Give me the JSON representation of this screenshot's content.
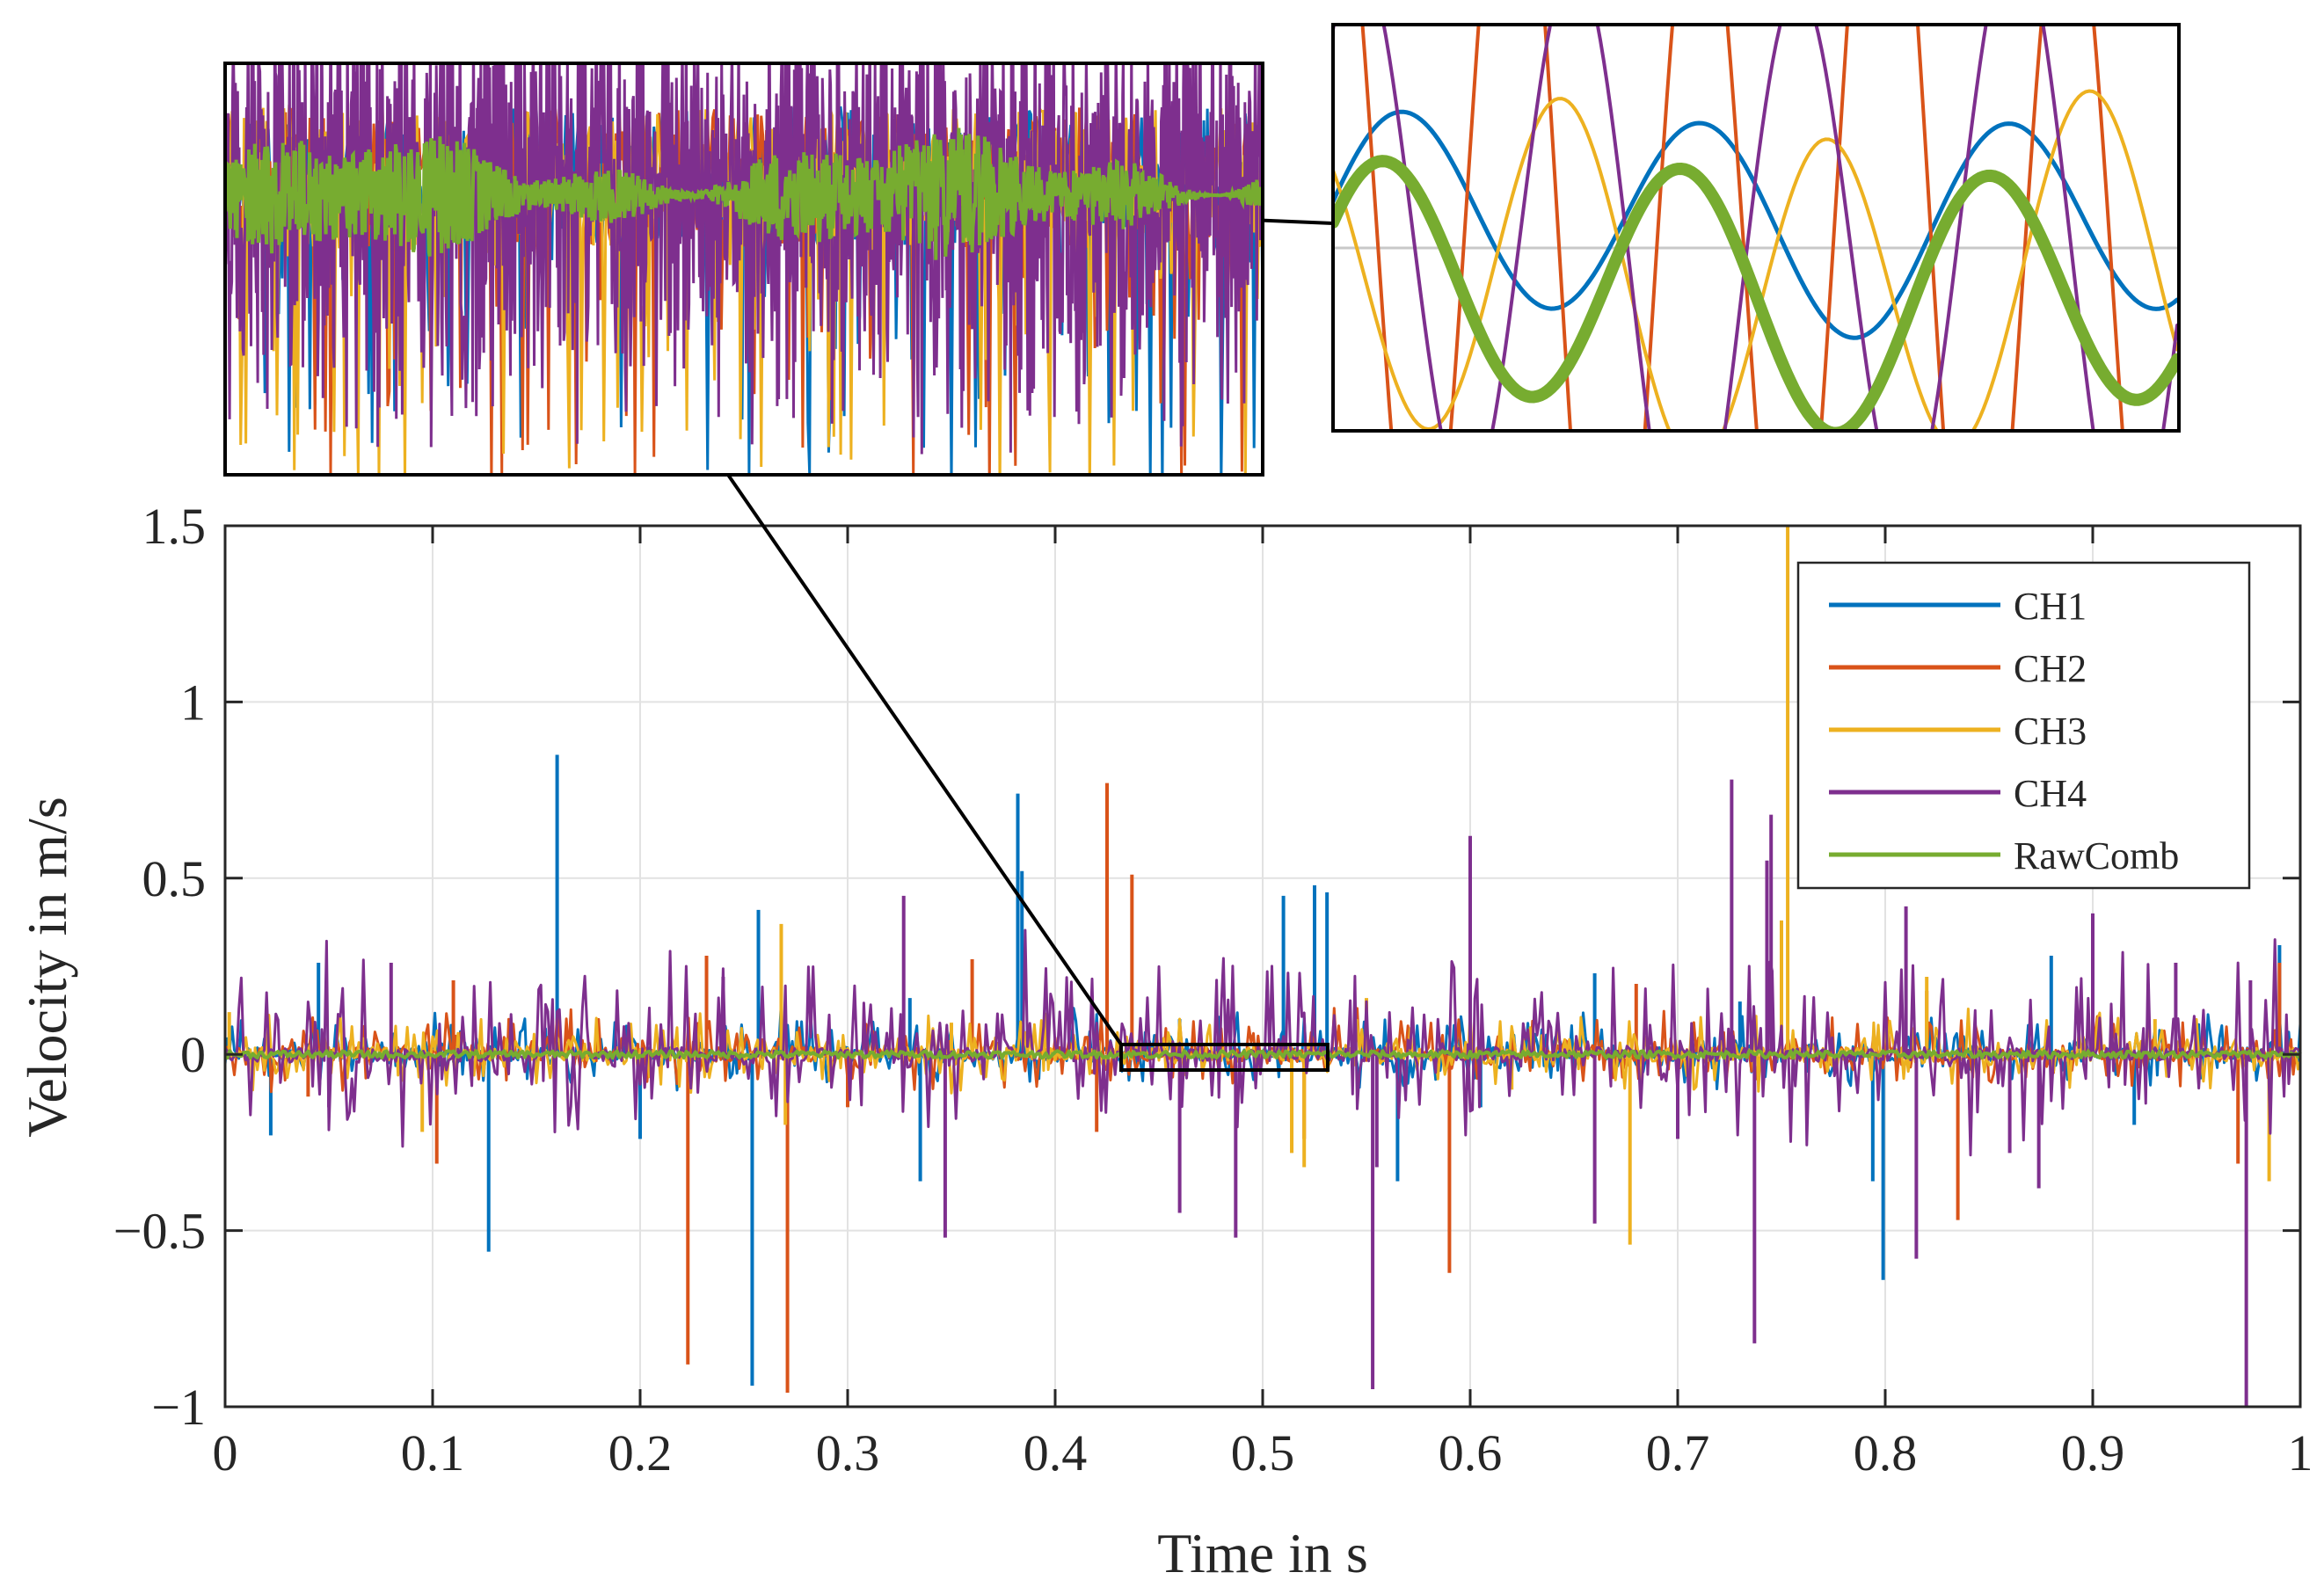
{
  "chart_data": [
    {
      "type": "line",
      "role": "main",
      "title": "",
      "xlabel": "Time in s",
      "ylabel": "Velocity in m/s",
      "xlim": [
        0,
        1
      ],
      "ylim": [
        -1,
        1.5
      ],
      "xticks": [
        0,
        0.1,
        0.2,
        0.3,
        0.4,
        0.5,
        0.6,
        0.7,
        0.8,
        0.9,
        1
      ],
      "xtick_labels": [
        "0",
        "0.1",
        "0.2",
        "0.3",
        "0.4",
        "0.5",
        "0.6",
        "0.7",
        "0.8",
        "0.9",
        "1"
      ],
      "yticks": [
        -1,
        -0.5,
        0,
        0.5,
        1,
        1.5
      ],
      "ytick_labels": [
        "−1",
        "−0.5",
        "0",
        "0.5",
        "1",
        "1.5"
      ],
      "grid": true,
      "legend_position": "top-right",
      "series": [
        {
          "name": "CH1",
          "color": "#0072BD",
          "linewidth": 4,
          "spikes": [
            [
              0.16,
              0.85
            ],
            [
              0.127,
              -0.56
            ],
            [
              0.254,
              -0.94
            ],
            [
              0.257,
              0.41
            ],
            [
              0.382,
              0.74
            ],
            [
              0.384,
              0.52
            ],
            [
              0.525,
              0.48
            ],
            [
              0.531,
              0.46
            ],
            [
              0.51,
              0.45
            ],
            [
              0.799,
              -0.64
            ],
            [
              0.794,
              -0.36
            ],
            [
              0.335,
              -0.36
            ],
            [
              0.045,
              0.26
            ],
            [
              0.33,
              0.16
            ],
            [
              0.66,
              0.23
            ],
            [
              0.99,
              0.31
            ],
            [
              0.022,
              -0.23
            ],
            [
              0.2,
              -0.24
            ],
            [
              0.565,
              -0.36
            ],
            [
              0.88,
              0.28
            ],
            [
              0.92,
              -0.2
            ],
            [
              0.73,
              0.15
            ],
            [
              0.46,
              0.1
            ],
            [
              0.605,
              -0.15
            ]
          ]
        },
        {
          "name": "CH2",
          "color": "#D95319",
          "linewidth": 4,
          "spikes": [
            [
              0.223,
              -0.88
            ],
            [
              0.271,
              -0.96
            ],
            [
              0.425,
              0.77
            ],
            [
              0.437,
              0.51
            ],
            [
              0.59,
              -0.62
            ],
            [
              0.6,
              0.27
            ],
            [
              0.835,
              -0.47
            ],
            [
              0.99,
              0.26
            ],
            [
              0.102,
              -0.31
            ],
            [
              0.232,
              0.28
            ],
            [
              0.36,
              0.27
            ],
            [
              0.52,
              -0.24
            ],
            [
              0.97,
              -0.31
            ],
            [
              0.42,
              -0.22
            ],
            [
              0.11,
              0.21
            ],
            [
              0.68,
              0.2
            ],
            [
              0.82,
              0.18
            ],
            [
              0.3,
              -0.15
            ],
            [
              0.75,
              0.12
            ],
            [
              0.04,
              -0.12
            ]
          ]
        },
        {
          "name": "CH3",
          "color": "#EDB120",
          "linewidth": 4,
          "spikes": [
            [
              0.753,
              1.5
            ],
            [
              0.268,
              0.37
            ],
            [
              0.677,
              -0.54
            ],
            [
              0.095,
              -0.22
            ],
            [
              0.985,
              -0.36
            ],
            [
              0.52,
              -0.32
            ],
            [
              0.514,
              -0.28
            ],
            [
              0.75,
              0.38
            ],
            [
              0.27,
              -0.2
            ],
            [
              0.82,
              0.22
            ],
            [
              0.55,
              0.16
            ],
            [
              0.002,
              0.12
            ],
            [
              0.35,
              0.09
            ],
            [
              0.62,
              -0.1
            ],
            [
              0.93,
              0.1
            ]
          ]
        },
        {
          "name": "CH4",
          "color": "#7E2F8E",
          "linewidth": 4,
          "spikes": [
            [
              0.553,
              -0.95
            ],
            [
              0.974,
              -1.0
            ],
            [
              0.737,
              -0.82
            ],
            [
              0.555,
              -0.32
            ],
            [
              0.327,
              0.45
            ],
            [
              0.6,
              0.62
            ],
            [
              0.726,
              0.78
            ],
            [
              0.745,
              0.68
            ],
            [
              0.743,
              0.55
            ],
            [
              0.347,
              -0.52
            ],
            [
              0.815,
              -0.58
            ],
            [
              0.874,
              -0.38
            ],
            [
              0.487,
              -0.52
            ],
            [
              0.46,
              -0.45
            ],
            [
              0.94,
              0.26
            ],
            [
              0.66,
              -0.48
            ],
            [
              0.9,
              0.4
            ],
            [
              0.81,
              0.42
            ],
            [
              0.976,
              0.21
            ],
            [
              0.7,
              -0.24
            ],
            [
              0.86,
              -0.28
            ],
            [
              0.24,
              0.22
            ],
            [
              0.05,
              -0.15
            ],
            [
              0.08,
              0.26
            ]
          ],
          "noise_amplitude": 0.25
        },
        {
          "name": "RawComb",
          "color": "#77AC30",
          "linewidth": 5,
          "noise_amplitude": 0.01
        }
      ]
    },
    {
      "type": "line",
      "role": "inset-zoom",
      "title": "",
      "source_xlim": [
        0.432,
        0.532
      ],
      "source_ylim": [
        -0.04,
        0.04
      ],
      "grid": false,
      "series": [
        "CH1",
        "CH2",
        "CH3",
        "CH4",
        "RawComb"
      ]
    },
    {
      "type": "line",
      "role": "inset-detail",
      "title": "",
      "source_xlim": [
        0.147,
        0.152
      ],
      "grid": false,
      "series": [
        "CH1",
        "CH2",
        "CH3",
        "CH4",
        "RawComb"
      ]
    }
  ]
}
